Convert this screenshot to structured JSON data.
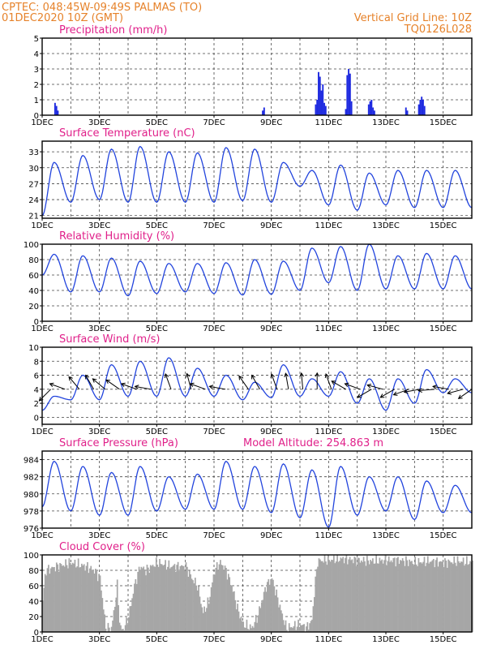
{
  "header": {
    "line1": "CPTEC:   048:45W-09:49S   PALMAS (TO)",
    "line2": "01DEC2020 10Z (GMT)",
    "right1": "Vertical Grid Line: 10Z",
    "right2": "TQ0126L028"
  },
  "colors": {
    "title": "#e0208a",
    "header": "#e6822a",
    "series": "#2244dd",
    "bars": "#1f2be0",
    "cloud": "#a6a6a6"
  },
  "x_ticks": [
    "1DEC",
    "3DEC",
    "5DEC",
    "7DEC",
    "9DEC",
    "11DEC",
    "13DEC",
    "15DEC"
  ],
  "x_tick_days": [
    0,
    2,
    4,
    6,
    8,
    10,
    12,
    14
  ],
  "x_range_days": [
    0,
    15
  ],
  "chart_data": [
    {
      "id": "precip",
      "type": "bar",
      "title": "Precipitation (mm/h)",
      "ylim": [
        0,
        5
      ],
      "yticks": [
        0,
        1,
        2,
        3,
        4,
        5
      ],
      "x_days": [
        0.45,
        0.5,
        0.55,
        7.7,
        7.75,
        9.55,
        9.6,
        9.65,
        9.7,
        9.75,
        9.8,
        9.85,
        9.9,
        10.6,
        10.65,
        10.7,
        10.75,
        10.8,
        11.4,
        11.45,
        11.5,
        11.55,
        11.6,
        12.7,
        12.75,
        13.15,
        13.2,
        13.25,
        13.3,
        13.35
      ],
      "values": [
        0.8,
        0.6,
        0.3,
        0.3,
        0.5,
        0.7,
        1.0,
        2.8,
        2.5,
        1.6,
        2.0,
        0.8,
        0.6,
        0.4,
        2.6,
        3.0,
        2.7,
        0.9,
        0.7,
        0.9,
        1.0,
        0.5,
        0.3,
        0.5,
        0.3,
        0.7,
        1.0,
        1.2,
        1.0,
        0.6
      ]
    },
    {
      "id": "temp",
      "type": "line",
      "title": "Surface Temperature (nC)",
      "ylim": [
        20.5,
        35
      ],
      "yticks": [
        21,
        24,
        27,
        30,
        33
      ],
      "peaks": [
        31.0,
        32.3,
        33.5,
        34.0,
        33.0,
        32.8,
        33.8,
        33.5,
        31.0,
        29.5,
        30.5,
        29.0,
        29.5,
        29.5,
        29.5
      ],
      "troughs": [
        21.0,
        23.5,
        24.0,
        23.5,
        23.5,
        23.5,
        23.5,
        23.8,
        23.5,
        26.5,
        23.0,
        22.0,
        23.0,
        22.5,
        22.5
      ]
    },
    {
      "id": "rh",
      "type": "line",
      "title": "Relative Humidity (%)",
      "ylim": [
        0,
        100
      ],
      "yticks": [
        0,
        20,
        40,
        60,
        80,
        100
      ],
      "peaks": [
        87,
        85,
        82,
        78,
        75,
        75,
        76,
        80,
        78,
        95,
        97,
        100,
        85,
        88,
        85
      ],
      "troughs": [
        60,
        38,
        38,
        33,
        36,
        38,
        36,
        34,
        35,
        40,
        50,
        40,
        42,
        42,
        42
      ]
    },
    {
      "id": "wind",
      "type": "line",
      "title": "Surface Wind (m/s)",
      "ylim": [
        -1,
        10
      ],
      "yticks": [
        0,
        2,
        4,
        6,
        8,
        10
      ],
      "peaks": [
        3.0,
        6.0,
        7.5,
        8.0,
        8.5,
        7.0,
        6.0,
        5.0,
        7.5,
        5.5,
        6.5,
        5.5,
        5.5,
        6.8,
        5.5
      ],
      "troughs": [
        1.0,
        2.5,
        2.5,
        3.0,
        3.0,
        3.0,
        3.0,
        2.5,
        2.8,
        3.0,
        3.0,
        2.0,
        1.0,
        2.0,
        3.5
      ],
      "arrows_x_days": [
        0.3,
        0.8,
        1.3,
        1.8,
        2.2,
        2.7,
        3.3,
        3.8,
        4.5,
        5.2,
        5.7,
        6.4,
        7.2,
        7.6,
        8.2,
        8.6,
        9.1,
        9.6,
        10.1,
        10.6,
        11.1,
        11.5,
        11.9,
        12.3,
        12.8,
        13.2,
        13.7,
        14.2,
        14.7,
        15.0
      ],
      "arrows_angle_deg": [
        135,
        200,
        230,
        240,
        220,
        215,
        200,
        190,
        250,
        255,
        200,
        190,
        235,
        240,
        250,
        260,
        265,
        270,
        250,
        210,
        200,
        150,
        195,
        150,
        160,
        170,
        175,
        190,
        165,
        145
      ]
    },
    {
      "id": "pressure",
      "type": "line",
      "title": "Surface Pressure (hPa)",
      "annotation": "Model Altitude: 254.863 m",
      "ylim": [
        976,
        985
      ],
      "yticks": [
        976,
        978,
        980,
        982,
        984
      ],
      "peaks": [
        983.8,
        983.2,
        982.5,
        983.2,
        982.0,
        982.3,
        983.8,
        983.2,
        983.5,
        982.8,
        983.2,
        982.0,
        982.0,
        981.5,
        981.0
      ],
      "troughs": [
        978.5,
        978.0,
        977.5,
        977.5,
        978.0,
        978.2,
        978.2,
        978.2,
        977.8,
        977.2,
        976.1,
        977.5,
        978.0,
        977.0,
        977.8
      ]
    },
    {
      "id": "cloud",
      "type": "area",
      "title": "Cloud Cover (%)",
      "ylim": [
        0,
        100
      ],
      "yticks": [
        0,
        20,
        40,
        60,
        80,
        100
      ],
      "profile_days": [
        0,
        0.1,
        0.5,
        1.0,
        1.5,
        1.8,
        2.0,
        2.2,
        2.4,
        2.5,
        2.6,
        2.7,
        2.8,
        2.9,
        3.0,
        3.2,
        3.4,
        3.6,
        3.8,
        4.0,
        4.5,
        5.0,
        5.2,
        5.4,
        5.6,
        5.8,
        6.0,
        6.2,
        6.4,
        6.6,
        6.8,
        7.0,
        7.3,
        7.5,
        7.8,
        8.0,
        8.3,
        8.5,
        8.8,
        9.0,
        9.2,
        9.4,
        9.5,
        9.6,
        9.8,
        10.5,
        11.0,
        11.5,
        12.0,
        12.5,
        13.0,
        13.5,
        14.0,
        14.5,
        15.0
      ],
      "profile_values": [
        40,
        80,
        85,
        90,
        85,
        80,
        70,
        5,
        5,
        30,
        60,
        5,
        3,
        10,
        20,
        60,
        85,
        80,
        85,
        90,
        85,
        85,
        70,
        60,
        25,
        40,
        80,
        90,
        80,
        60,
        30,
        10,
        5,
        20,
        60,
        70,
        30,
        5,
        8,
        10,
        5,
        15,
        60,
        92,
        93,
        95,
        93,
        92,
        93,
        93,
        90,
        92,
        90,
        92,
        90
      ]
    }
  ]
}
